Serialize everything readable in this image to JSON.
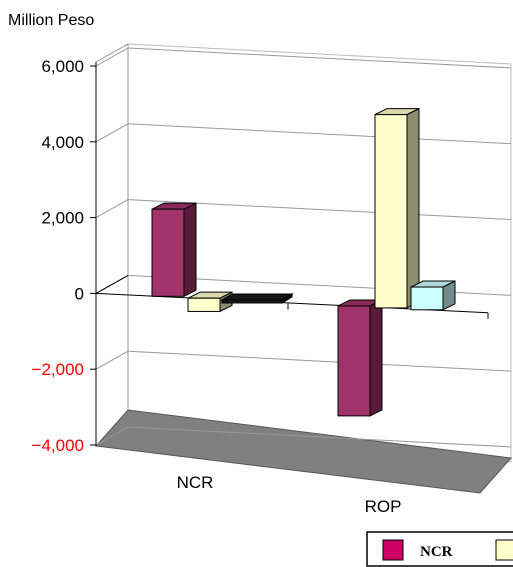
{
  "chart_data": {
    "type": "bar",
    "title": "",
    "ylabel": "Million Peso",
    "xlabel": "",
    "ylim": [
      -4000,
      6000
    ],
    "yticks": [
      6000,
      4000,
      2000,
      0,
      -2000,
      -4000
    ],
    "ytick_labels": [
      "6,000",
      "4,000",
      "2,000",
      "0",
      "−2,000",
      "−4,000"
    ],
    "negative_tick_color": "#ff0000",
    "categories": [
      "NCR",
      "ROP"
    ],
    "series": [
      {
        "name": "NCR",
        "color": "#a0336a",
        "values": [
          2300,
          -2900
        ]
      },
      {
        "name": "",
        "color": "#ffffcc",
        "values": [
          -350,
          5100
        ]
      },
      {
        "name": "",
        "color": "#1a1a1a",
        "values": [
          -80,
          null
        ]
      },
      {
        "name": "",
        "color": "#ccffff",
        "values": [
          null,
          600
        ]
      }
    ],
    "legend_position": "bottom-right",
    "grid": true,
    "floor_color": "#808080",
    "style": "3d-clustered-bar"
  }
}
